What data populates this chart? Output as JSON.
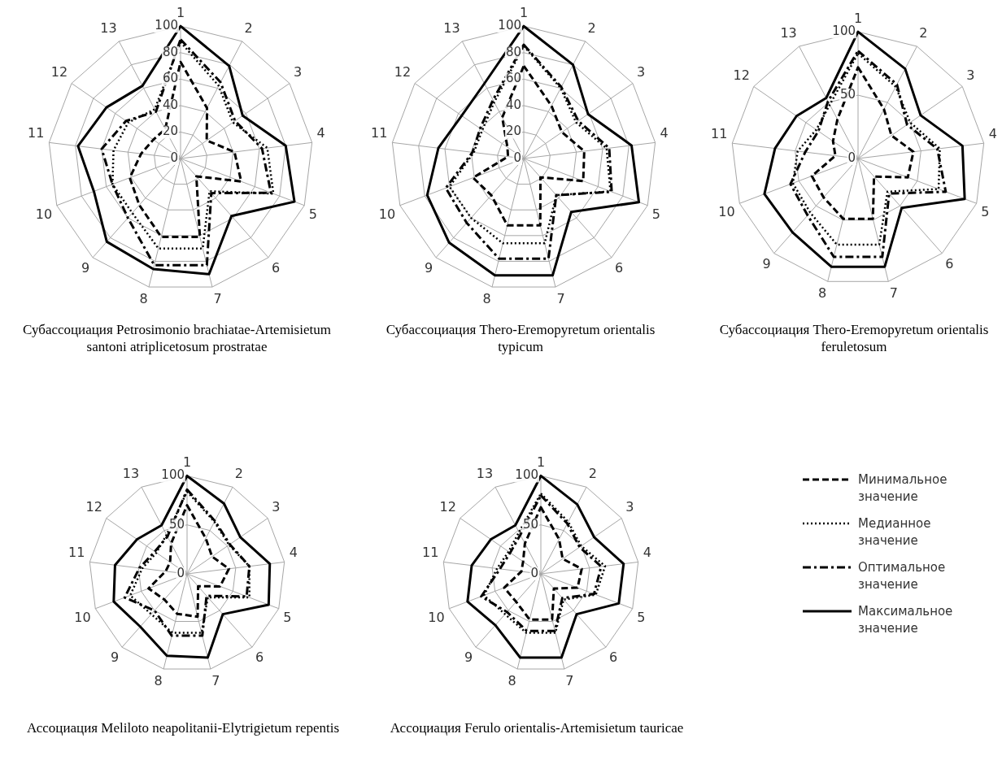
{
  "chart_data": [
    {
      "type": "radar",
      "title": "Субассоциация Petrosimonio brachiatae-Artemisietum santoni atriplicetosum prostratae",
      "categories": [
        "1",
        "2",
        "3",
        "4",
        "5",
        "6",
        "7",
        "8",
        "9",
        "10",
        "11",
        "12",
        "13"
      ],
      "ylim": [
        0,
        100
      ],
      "yticks": [
        0,
        20,
        40,
        60,
        80,
        100
      ],
      "grid": true,
      "marker": "none",
      "series": [
        {
          "color": "#000000",
          "line_style": "dashed",
          "values": [
            73,
            43,
            24,
            41,
            49,
            18,
            61,
            61,
            47,
            41,
            30,
            25,
            25
          ]
        },
        {
          "color": "#000000",
          "line_style": "dotted",
          "values": [
            88,
            62,
            48,
            66,
            75,
            33,
            70,
            70,
            55,
            55,
            51,
            48,
            42
          ]
        },
        {
          "color": "#000000",
          "line_style": "dashdot",
          "values": [
            90,
            65,
            50,
            62,
            73,
            35,
            83,
            83,
            60,
            55,
            60,
            50,
            40
          ]
        },
        {
          "color": "#000000",
          "line_style": "solid",
          "values": [
            100,
            79,
            57,
            80,
            92,
            58,
            90,
            86,
            84,
            70,
            78,
            68,
            62
          ]
        }
      ]
    },
    {
      "type": "radar",
      "title": "Субассоциация Thero-Eremopyretum orientalis typicum",
      "categories": [
        "1",
        "2",
        "3",
        "4",
        "5",
        "6",
        "7",
        "8",
        "9",
        "10",
        "11",
        "12",
        "13"
      ],
      "ylim": [
        0,
        100
      ],
      "yticks": [
        0,
        20,
        40,
        60,
        80,
        100
      ],
      "grid": true,
      "marker": "none",
      "series": [
        {
          "color": "#000000",
          "line_style": "dashed",
          "values": [
            70,
            45,
            35,
            46,
            48,
            19,
            52,
            52,
            37,
            41,
            12,
            15,
            35
          ]
        },
        {
          "color": "#000000",
          "line_style": "dotted",
          "values": [
            85,
            60,
            48,
            63,
            70,
            37,
            66,
            66,
            60,
            60,
            38,
            38,
            48
          ]
        },
        {
          "color": "#000000",
          "line_style": "dashdot",
          "values": [
            86,
            61,
            50,
            65,
            71,
            37,
            78,
            78,
            65,
            63,
            39,
            40,
            50
          ]
        },
        {
          "color": "#000000",
          "line_style": "solid",
          "values": [
            100,
            80,
            59,
            82,
            93,
            54,
            91,
            91,
            85,
            78,
            65,
            57,
            64
          ]
        }
      ]
    },
    {
      "type": "radar",
      "title": "Субассоциация Thero-Eremopyretum orientalis feruletosum",
      "categories": [
        "1",
        "2",
        "3",
        "4",
        "5",
        "6",
        "7",
        "8",
        "9",
        "10",
        "11",
        "12",
        "13"
      ],
      "ylim": [
        0,
        100
      ],
      "yticks": [
        0,
        50,
        100
      ],
      "grid": true,
      "marker": "none",
      "series": [
        {
          "color": "#000000",
          "line_style": "dashed",
          "values": [
            72,
            44,
            32,
            44,
            42,
            19,
            49,
            49,
            41,
            39,
            18,
            24,
            35
          ]
        },
        {
          "color": "#000000",
          "line_style": "dotted",
          "values": [
            83,
            64,
            50,
            65,
            68,
            35,
            70,
            70,
            57,
            55,
            48,
            40,
            48
          ]
        },
        {
          "color": "#000000",
          "line_style": "dashdot",
          "values": [
            85,
            66,
            47,
            63,
            74,
            37,
            80,
            80,
            60,
            57,
            42,
            38,
            51
          ]
        },
        {
          "color": "#000000",
          "line_style": "solid",
          "values": [
            100,
            80,
            60,
            83,
            90,
            52,
            88,
            88,
            78,
            79,
            66,
            59,
            54
          ]
        }
      ]
    },
    {
      "type": "radar",
      "title": "Ассоциация Meliloto neapolitanii-Elytrigietum repentis",
      "categories": [
        "1",
        "2",
        "3",
        "4",
        "5",
        "6",
        "7",
        "8",
        "9",
        "10",
        "11",
        "12",
        "13"
      ],
      "ylim": [
        0,
        100
      ],
      "yticks": [
        0,
        50,
        100
      ],
      "grid": true,
      "marker": "none",
      "series": [
        {
          "color": "#000000",
          "line_style": "dashed",
          "values": [
            70,
            41,
            31,
            43,
            36,
            17,
            45,
            42,
            35,
            42,
            22,
            21,
            35
          ]
        },
        {
          "color": "#000000",
          "line_style": "dotted",
          "values": [
            84,
            60,
            52,
            64,
            68,
            32,
            62,
            62,
            55,
            62,
            46,
            38,
            45
          ]
        },
        {
          "color": "#000000",
          "line_style": "dashdot",
          "values": [
            86,
            61,
            53,
            64,
            65,
            30,
            65,
            65,
            50,
            68,
            49,
            40,
            43
          ]
        },
        {
          "color": "#000000",
          "line_style": "solid",
          "values": [
            100,
            81,
            66,
            85,
            89,
            55,
            88,
            86,
            72,
            80,
            74,
            62,
            56
          ]
        }
      ]
    },
    {
      "type": "radar",
      "title": "Ассоциация Ferulo orientalis-Artemisietum tauricae",
      "categories": [
        "1",
        "2",
        "3",
        "4",
        "5",
        "6",
        "7",
        "8",
        "9",
        "10",
        "11",
        "12",
        "13"
      ],
      "ylim": [
        0,
        100
      ],
      "yticks": [
        0,
        50,
        100
      ],
      "grid": true,
      "marker": "none",
      "legend": "right",
      "series": [
        {
          "name": "Минимальное значение",
          "color": "#000000",
          "line_style": "dashed",
          "values": [
            68,
            40,
            27,
            42,
            40,
            20,
            48,
            48,
            38,
            40,
            20,
            22,
            35
          ]
        },
        {
          "name": "Медианное значение",
          "color": "#000000",
          "line_style": "dotted",
          "values": [
            82,
            60,
            50,
            66,
            60,
            35,
            62,
            62,
            55,
            62,
            45,
            40,
            48
          ]
        },
        {
          "name": "Оптимальное значение",
          "color": "#000000",
          "line_style": "dashdot",
          "values": [
            80,
            58,
            48,
            62,
            58,
            33,
            60,
            60,
            52,
            65,
            42,
            38,
            45
          ]
        },
        {
          "name": "Максимальное значение",
          "color": "#000000",
          "line_style": "solid",
          "values": [
            100,
            80,
            66,
            85,
            85,
            55,
            88,
            88,
            70,
            80,
            71,
            62,
            56
          ]
        }
      ]
    }
  ]
}
